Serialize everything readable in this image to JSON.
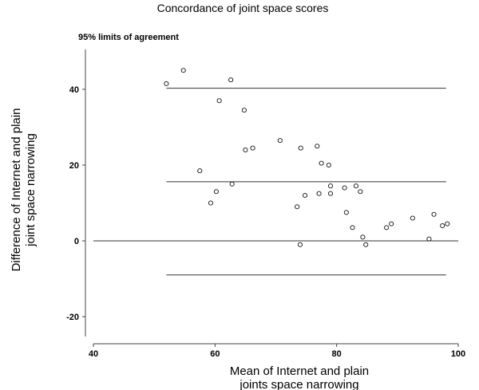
{
  "chart_data": {
    "type": "scatter",
    "title": "Concordance of joint space scores",
    "subtitle": "95% limits of agreement",
    "xlabel_lines": [
      "Mean of Internet and plain",
      "joints space narrowing"
    ],
    "ylabel_lines": [
      "Difference of Internet and plain",
      "joint space narrowing"
    ],
    "xlim": [
      40,
      100
    ],
    "ylim": [
      -20,
      45
    ],
    "x_ticks": [
      40,
      60,
      80,
      100
    ],
    "y_ticks": [
      -20,
      0,
      20,
      40
    ],
    "grid": false,
    "reference_lines": [
      {
        "name": "upper limit",
        "y": 40.3,
        "x_range": [
          52,
          98
        ]
      },
      {
        "name": "mean difference",
        "y": 15.6,
        "x_range": [
          52,
          98
        ]
      },
      {
        "name": "zero",
        "y": 0,
        "x_range": [
          40,
          100
        ]
      },
      {
        "name": "lower limit",
        "y": -9,
        "x_range": [
          52,
          98
        ]
      }
    ],
    "points": [
      {
        "x": 52,
        "y": 41.5
      },
      {
        "x": 54.8,
        "y": 45
      },
      {
        "x": 57.5,
        "y": 18.5
      },
      {
        "x": 59.3,
        "y": 10
      },
      {
        "x": 60.2,
        "y": 13
      },
      {
        "x": 60.7,
        "y": 37
      },
      {
        "x": 62.6,
        "y": 42.5
      },
      {
        "x": 62.8,
        "y": 15
      },
      {
        "x": 64.8,
        "y": 34.5
      },
      {
        "x": 65,
        "y": 24
      },
      {
        "x": 66.2,
        "y": 24.5
      },
      {
        "x": 70.7,
        "y": 26.5
      },
      {
        "x": 73.5,
        "y": 9
      },
      {
        "x": 74,
        "y": -1
      },
      {
        "x": 74.1,
        "y": 24.5
      },
      {
        "x": 74.8,
        "y": 12
      },
      {
        "x": 76.8,
        "y": 25
      },
      {
        "x": 77.1,
        "y": 12.5
      },
      {
        "x": 77.5,
        "y": 20.5
      },
      {
        "x": 78.7,
        "y": 20
      },
      {
        "x": 79,
        "y": 14.5
      },
      {
        "x": 79,
        "y": 12.5
      },
      {
        "x": 81.3,
        "y": 14
      },
      {
        "x": 81.6,
        "y": 7.5
      },
      {
        "x": 82.6,
        "y": 3.5
      },
      {
        "x": 83.2,
        "y": 14.5
      },
      {
        "x": 83.9,
        "y": 13
      },
      {
        "x": 84.3,
        "y": 1
      },
      {
        "x": 84.8,
        "y": -1
      },
      {
        "x": 88.2,
        "y": 3.5
      },
      {
        "x": 89,
        "y": 4.5
      },
      {
        "x": 92.5,
        "y": 6
      },
      {
        "x": 95.2,
        "y": 0.5
      },
      {
        "x": 96,
        "y": 7
      },
      {
        "x": 97.4,
        "y": 4
      },
      {
        "x": 98.2,
        "y": 4.5
      }
    ]
  }
}
